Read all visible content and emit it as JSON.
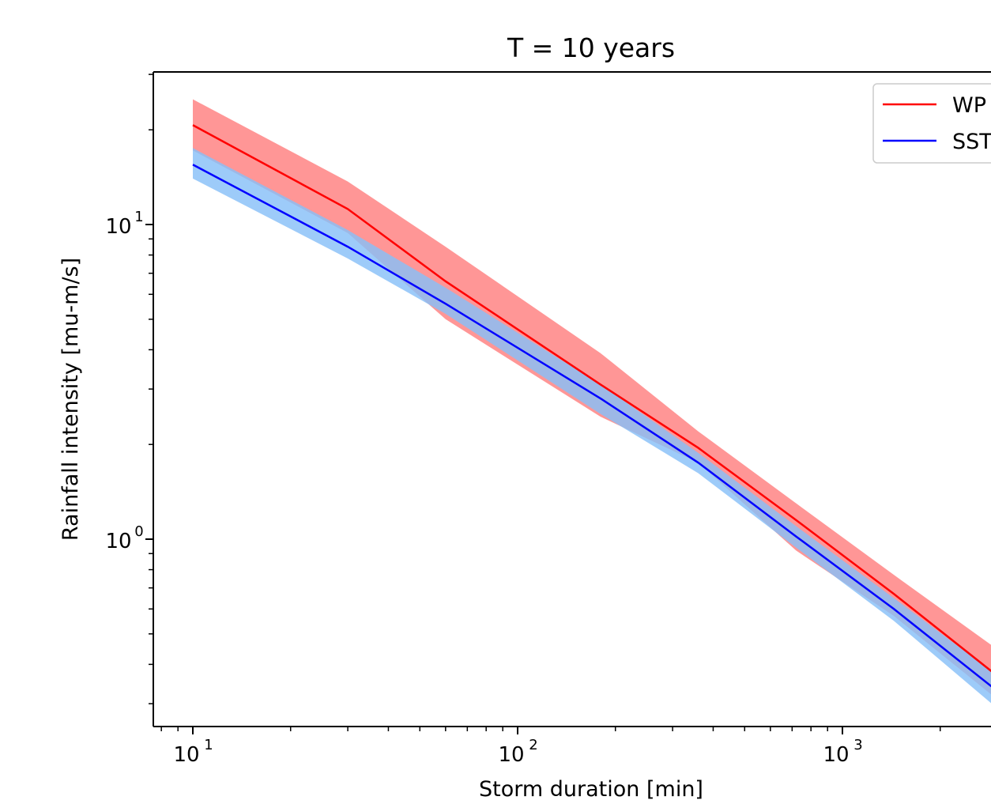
{
  "chart_data": {
    "type": "line",
    "title": "T = 10 years",
    "xlabel": "Storm duration [min]",
    "ylabel": "Rainfall intensity [mu-m/s]",
    "xscale": "log",
    "yscale": "log",
    "xlim": [
      7.8,
      3000
    ],
    "ylim": [
      0.27,
      30
    ],
    "grid": false,
    "legend_position": "top-right",
    "x_major_ticks": [
      {
        "value": 10,
        "base": "10",
        "exp": "1"
      },
      {
        "value": 100,
        "base": "10",
        "exp": "2"
      },
      {
        "value": 1000,
        "base": "10",
        "exp": "3"
      }
    ],
    "y_major_ticks": [
      {
        "value": 1,
        "base": "10",
        "exp": "0"
      },
      {
        "value": 10,
        "base": "10",
        "exp": "1"
      }
    ],
    "series": [
      {
        "name": "WP",
        "color": "#ff0000",
        "band_color": "#ff7f7f",
        "x": [
          10,
          30,
          60,
          180,
          360,
          720,
          1440,
          2880
        ],
        "y": [
          20.7,
          11.2,
          6.6,
          3.1,
          1.95,
          1.15,
          0.67,
          0.38
        ],
        "lower": [
          17.2,
          9.4,
          5.0,
          2.45,
          1.75,
          0.92,
          0.57,
          0.32
        ],
        "upper": [
          25.0,
          13.7,
          8.5,
          3.9,
          2.2,
          1.3,
          0.77,
          0.46
        ]
      },
      {
        "name": "SST",
        "color": "#0000ff",
        "band_color": "#87c0f8",
        "x": [
          10,
          30,
          60,
          180,
          360,
          720,
          1440,
          2880
        ],
        "y": [
          15.5,
          8.5,
          5.6,
          2.8,
          1.75,
          1.02,
          0.6,
          0.34
        ],
        "lower": [
          14.0,
          7.8,
          5.2,
          2.5,
          1.62,
          0.94,
          0.55,
          0.3
        ],
        "upper": [
          17.5,
          9.6,
          6.3,
          3.1,
          1.88,
          1.1,
          0.65,
          0.38
        ]
      }
    ]
  }
}
